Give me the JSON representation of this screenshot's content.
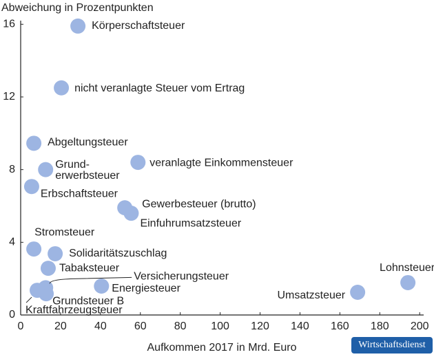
{
  "chart_data": {
    "type": "scatter",
    "ylabel": "Abweichung in Prozentpunkten",
    "xlabel": "Aufkommen 2017 in Mrd. Euro",
    "badge": "Wirtschaftsdienst",
    "color": "#9db5e2",
    "x": [
      28.7,
      20.4,
      6.6,
      58.8,
      12.5,
      5.5,
      52.2,
      55.4,
      6.6,
      17.3,
      13.8,
      12.5,
      40.5,
      12.8,
      8.3,
      168.9,
      194.1
    ],
    "values": [
      15.9,
      12.5,
      9.45,
      8.4,
      8.0,
      7.07,
      5.9,
      5.6,
      3.63,
      3.37,
      2.57,
      1.5,
      1.59,
      1.17,
      1.36,
      1.25,
      1.78
    ],
    "point_labels": [
      [
        "Körperschaftsteuer"
      ],
      [
        "nicht veranlagte Steuer vom Ertrag"
      ],
      [
        "Abgeltungsteuer"
      ],
      [
        "veranlagte Einkommensteuer"
      ],
      [
        "Grund-",
        "erwerbsteuer"
      ],
      [
        "Erbschaftsteuer"
      ],
      [
        "Gewerbesteuer (brutto)"
      ],
      [
        "Einfuhrumsatzsteuer"
      ],
      [
        "Stromsteuer"
      ],
      [
        "Solidaritätszuschlag"
      ],
      [
        "Tabaksteuer"
      ],
      [
        "Versicherungsteuer"
      ],
      [
        "Energiesteuer"
      ],
      [
        "Grundsteuer B"
      ],
      [
        "Kraftfahrzeugsteuer"
      ],
      [
        "Umsatzsteuer"
      ],
      [
        "Lohnsteuer"
      ]
    ],
    "xlim": [
      0,
      202
    ],
    "xticks": [
      0,
      20,
      40,
      60,
      80,
      100,
      120,
      140,
      160,
      180,
      200
    ],
    "ylim": [
      0,
      16.2
    ],
    "yticks": [
      0,
      4,
      8,
      12,
      16
    ],
    "grid": false
  }
}
